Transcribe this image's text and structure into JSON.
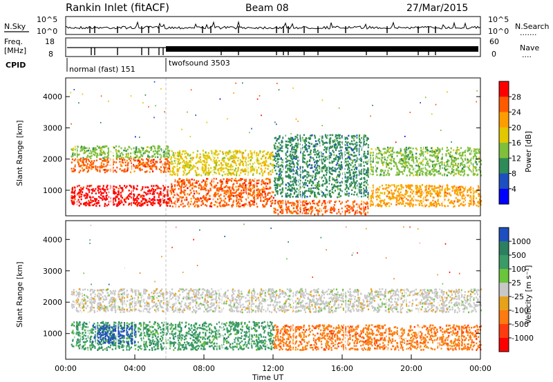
{
  "header": {
    "station": "Rankin Inlet (fitACF)",
    "beam": "Beam 08",
    "date": "27/Mar/2015"
  },
  "top_panels": {
    "nsky_label": "N.Sky",
    "nsky_ticks": [
      "10^5",
      "10^0"
    ],
    "nsearch_label": "N.Search",
    "nsearch_ticks": [
      "10^5",
      "10^0"
    ],
    "freq_label_1": "Freq.",
    "freq_label_2": "[MHz]",
    "freq_ticks": [
      "18",
      "8"
    ],
    "nave_label": "Nave",
    "nave_ticks": [
      "60",
      "0"
    ],
    "cpid_label": "CPID",
    "cpid_modes": [
      {
        "name": "normal (fast) 151",
        "start_hour": 0,
        "end_hour": 6
      },
      {
        "name": "twofsound 3503",
        "start_hour": 6,
        "end_hour": 24
      }
    ]
  },
  "chart_data": [
    {
      "type": "heatmap",
      "panel": "power",
      "ylabel": "Slant Range [km]",
      "yticks": [
        1000,
        2000,
        3000,
        4000
      ],
      "ylim": [
        180,
        4600
      ],
      "xlim_hours": [
        0,
        24
      ],
      "colorbar_label": "Power [dB]",
      "colorbar_ticks": [
        "28",
        "24",
        "20",
        "16",
        "12",
        "8",
        "4"
      ],
      "colorbar_colors": [
        "#ff0000",
        "#ff5a00",
        "#ff9d00",
        "#e3c800",
        "#7fbf3b",
        "#2e8b57",
        "#1e4fbf",
        "#0000ff"
      ],
      "scatter_regions": [
        {
          "hours": [
            0.3,
            6.0
          ],
          "range_km": [
            520,
            1180
          ],
          "value": "28"
        },
        {
          "hours": [
            0.3,
            6.0
          ],
          "range_km": [
            1600,
            2050
          ],
          "value": "24"
        },
        {
          "hours": [
            0.3,
            6.0
          ],
          "range_km": [
            2050,
            2450
          ],
          "value": "12"
        },
        {
          "hours": [
            6.0,
            12.0
          ],
          "range_km": [
            500,
            1400
          ],
          "value": "24"
        },
        {
          "hours": [
            6.0,
            12.0
          ],
          "range_km": [
            1500,
            2300
          ],
          "value": "16"
        },
        {
          "hours": [
            12.0,
            17.5
          ],
          "range_km": [
            250,
            700
          ],
          "value": "24"
        },
        {
          "hours": [
            12.0,
            17.5
          ],
          "range_km": [
            800,
            2800
          ],
          "value": "8"
        },
        {
          "hours": [
            17.5,
            24.0
          ],
          "range_km": [
            500,
            1200
          ],
          "value": "20"
        },
        {
          "hours": [
            17.5,
            24.0
          ],
          "range_km": [
            1500,
            2400
          ],
          "value": "12"
        }
      ]
    },
    {
      "type": "heatmap",
      "panel": "velocity",
      "ylabel": "Slant Range [km]",
      "yticks": [
        1000,
        2000,
        3000,
        4000
      ],
      "ylim": [
        180,
        4600
      ],
      "xlim_hours": [
        0,
        24
      ],
      "xlabel": "Time UT",
      "xticks": [
        "00:00",
        "04:00",
        "08:00",
        "12:00",
        "16:00",
        "20:00",
        "00:00"
      ],
      "colorbar_label": "Velocity [m s⁻¹]",
      "colorbar_ticks": [
        "1000",
        "500",
        "100",
        "25",
        "-25",
        "-100",
        "-500",
        "-1000"
      ],
      "colorbar_colors": [
        "#1f4fbf",
        "#2c7f5f",
        "#3a9b66",
        "#6ac43c",
        "#c8c8c8",
        "#e6a21a",
        "#ff7a10",
        "#ff3c10",
        "#ff0000"
      ],
      "scatter_regions": [
        {
          "hours": [
            0.3,
            12.0
          ],
          "range_km": [
            500,
            1400
          ],
          "value": "100"
        },
        {
          "hours": [
            1.5,
            4.0
          ],
          "range_km": [
            700,
            1300
          ],
          "value": "1000"
        },
        {
          "hours": [
            0.3,
            24.0
          ],
          "range_km": [
            1700,
            2450
          ],
          "value": "-25"
        },
        {
          "hours": [
            12.0,
            24.0
          ],
          "range_km": [
            500,
            1300
          ],
          "value": "-500"
        }
      ]
    }
  ]
}
